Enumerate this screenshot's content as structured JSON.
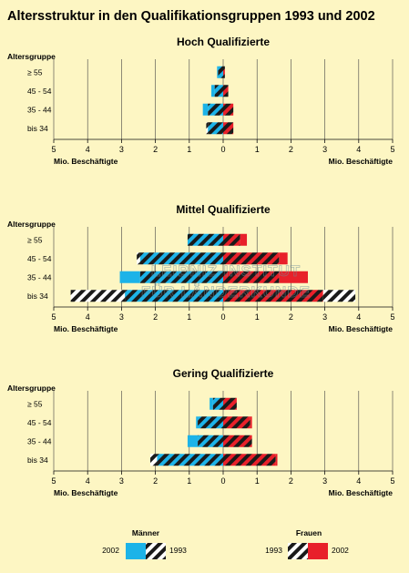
{
  "title": "Altersstruktur in den Qualifikationsgruppen 1993 und 2002",
  "watermark": [
    "LEIBNIZ-INSTITUT",
    "FÜR LÄNDERKUNDE"
  ],
  "colors": {
    "background": "#fdf6c3",
    "maenner_2002": "#1cb3e8",
    "frauen_2002": "#e8202a",
    "hatch_1993": "#1a1a1a"
  },
  "legend": {
    "maenner_label": "Männer",
    "frauen_label": "Frauen",
    "year_2002": "2002",
    "year_1993": "1993"
  },
  "chart_data": [
    {
      "type": "bar",
      "orientation": "horizontal-pyramid",
      "title": "Hoch Qualifizierte",
      "ylabel": "Altersgruppe",
      "xlabel_left": "Mio. Beschäftigte",
      "xlabel_right": "Mio. Beschäftigte",
      "xlim": [
        -5,
        5
      ],
      "xtick_labels": [
        "5",
        "4",
        "3",
        "2",
        "1",
        "0",
        "1",
        "2",
        "3",
        "4",
        "5"
      ],
      "categories": [
        "≥ 55",
        "45 - 54",
        "35 - 44",
        "bis 34"
      ],
      "series": [
        {
          "name": "Männer 2002",
          "values": [
            0.18,
            0.35,
            0.6,
            0.45
          ]
        },
        {
          "name": "Männer 1993",
          "values": [
            0.15,
            0.25,
            0.45,
            0.5
          ]
        },
        {
          "name": "Frauen 2002",
          "values": [
            0.05,
            0.15,
            0.3,
            0.3
          ]
        },
        {
          "name": "Frauen 1993",
          "values": [
            0.05,
            0.15,
            0.3,
            0.3
          ]
        }
      ]
    },
    {
      "type": "bar",
      "orientation": "horizontal-pyramid",
      "title": "Mittel Qualifizierte",
      "ylabel": "Altersgruppe",
      "xlabel_left": "Mio. Beschäftigte",
      "xlabel_right": "Mio. Beschäftigte",
      "xlim": [
        -5,
        5
      ],
      "xtick_labels": [
        "5",
        "4",
        "3",
        "2",
        "1",
        "0",
        "1",
        "2",
        "3",
        "4",
        "5"
      ],
      "categories": [
        "≥ 55",
        "45 - 54",
        "35 - 44",
        "bis 34"
      ],
      "series": [
        {
          "name": "Männer 2002",
          "values": [
            1.05,
            2.45,
            3.05,
            2.9
          ]
        },
        {
          "name": "Männer 1993",
          "values": [
            1.05,
            2.55,
            2.45,
            4.5
          ]
        },
        {
          "name": "Frauen 2002",
          "values": [
            0.7,
            1.9,
            2.5,
            2.95
          ]
        },
        {
          "name": "Frauen 1993",
          "values": [
            0.5,
            1.65,
            1.65,
            3.9
          ]
        }
      ]
    },
    {
      "type": "bar",
      "orientation": "horizontal-pyramid",
      "title": "Gering Qualifizierte",
      "ylabel": "Altersgruppe",
      "xlabel_left": "Mio. Beschäftigte",
      "xlabel_right": "Mio. Beschäftigte",
      "xlim": [
        -5,
        5
      ],
      "xtick_labels": [
        "5",
        "4",
        "3",
        "2",
        "1",
        "0",
        "1",
        "2",
        "3",
        "4",
        "5"
      ],
      "categories": [
        "≥ 55",
        "45 - 54",
        "35 - 44",
        "bis 34"
      ],
      "series": [
        {
          "name": "Männer 2002",
          "values": [
            0.4,
            0.8,
            1.05,
            1.95
          ]
        },
        {
          "name": "Männer 1993",
          "values": [
            0.3,
            0.75,
            0.75,
            2.15
          ]
        },
        {
          "name": "Frauen 2002",
          "values": [
            0.4,
            0.85,
            0.85,
            1.6
          ]
        },
        {
          "name": "Frauen 1993",
          "values": [
            0.4,
            0.8,
            0.85,
            1.55
          ]
        }
      ]
    }
  ]
}
